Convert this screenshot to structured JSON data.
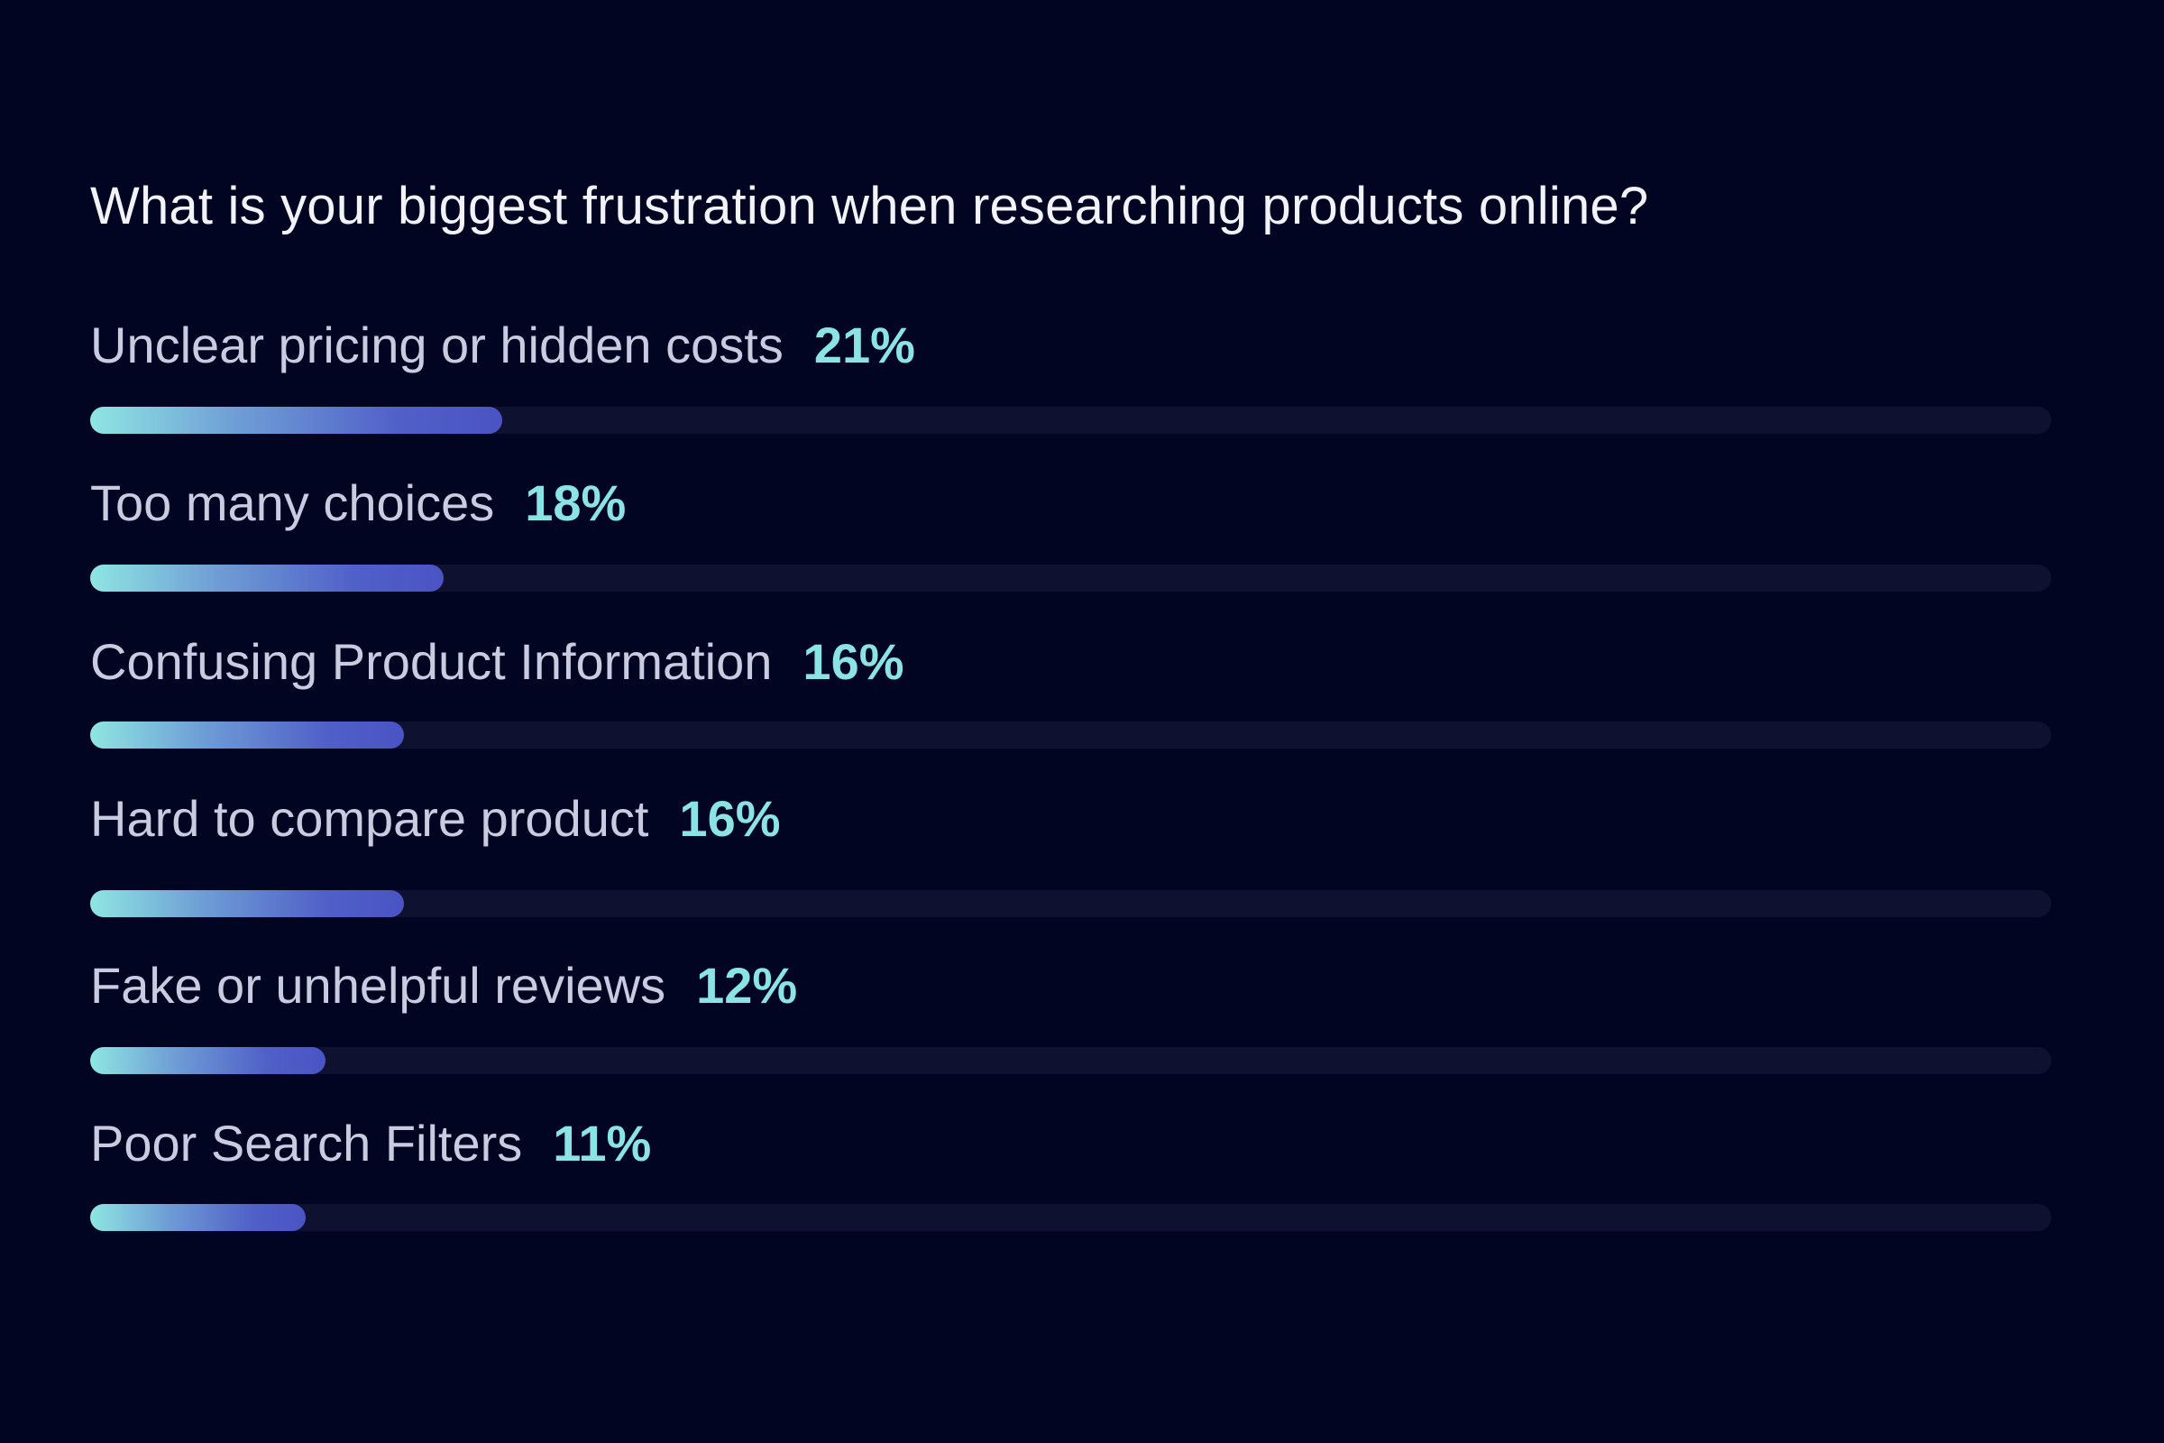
{
  "chart_data": {
    "type": "bar",
    "orientation": "horizontal",
    "title": "What is your biggest frustration when researching products online?",
    "categories": [
      "Unclear pricing or hidden costs",
      "Too many choices",
      "Confusing Product Information",
      "Hard to compare product",
      "Fake or unhelpful reviews",
      "Poor Search Filters"
    ],
    "values": [
      21,
      18,
      16,
      16,
      12,
      11
    ],
    "value_labels": [
      "21%",
      "18%",
      "16%",
      "16%",
      "12%",
      "11%"
    ],
    "xlim": [
      0,
      100
    ],
    "grid": false,
    "legend": "none"
  },
  "colors": {
    "background": "#020521",
    "title": "#f2f3f8",
    "label": "#c9cbe0",
    "percent": "#8ae3e4",
    "track": "#0e1130",
    "bar_gradient_start": "#8ee6e2",
    "bar_gradient_end": "#4a54c4"
  }
}
